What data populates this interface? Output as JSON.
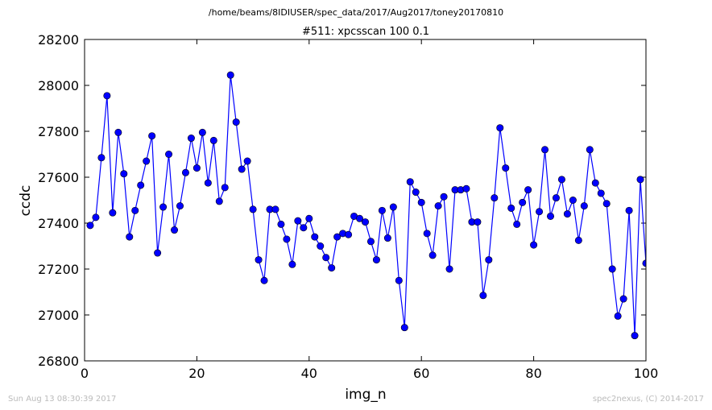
{
  "chart_data": {
    "type": "line",
    "suptitle": "/home/beams/8IDIUSER/spec_data/2017/Aug2017/toney20170810",
    "title": "#511: xpcsscan 100 0.1",
    "xlabel": "img_n",
    "ylabel": "ccdc",
    "xlim": [
      0,
      100
    ],
    "ylim": [
      26800,
      28200
    ],
    "xticks": [
      0,
      20,
      40,
      60,
      80,
      100
    ],
    "yticks": [
      26800,
      27000,
      27200,
      27400,
      27600,
      27800,
      28000,
      28200
    ],
    "grid": false,
    "series": [
      {
        "color": "#0000ff",
        "marker": "circle",
        "x": [
          1,
          2,
          3,
          4,
          5,
          6,
          7,
          8,
          9,
          10,
          11,
          12,
          13,
          14,
          15,
          16,
          17,
          18,
          19,
          20,
          21,
          22,
          23,
          24,
          25,
          26,
          27,
          28,
          29,
          30,
          31,
          32,
          33,
          34,
          35,
          36,
          37,
          38,
          39,
          40,
          41,
          42,
          43,
          44,
          45,
          46,
          47,
          48,
          49,
          50,
          51,
          52,
          53,
          54,
          55,
          56,
          57,
          58,
          59,
          60,
          61,
          62,
          63,
          64,
          65,
          66,
          67,
          68,
          69,
          70,
          71,
          72,
          73,
          74,
          75,
          76,
          77,
          78,
          79,
          80,
          81,
          82,
          83,
          84,
          85,
          86,
          87,
          88,
          89,
          90,
          91,
          92,
          93,
          94,
          95,
          96,
          97,
          98,
          99,
          100
        ],
        "y": [
          27390,
          27425,
          27685,
          27955,
          27445,
          27795,
          27615,
          27340,
          27455,
          27565,
          27670,
          27780,
          27270,
          27470,
          27700,
          27370,
          27475,
          27620,
          27770,
          27640,
          27795,
          27575,
          27760,
          27495,
          27555,
          28045,
          27840,
          27635,
          27670,
          27460,
          27240,
          27150,
          27460,
          27460,
          27395,
          27330,
          27220,
          27410,
          27380,
          27420,
          27340,
          27300,
          27250,
          27205,
          27340,
          27355,
          27350,
          27430,
          27420,
          27405,
          27320,
          27240,
          27455,
          27335,
          27470,
          27150,
          26945,
          27580,
          27535,
          27490,
          27355,
          27260,
          27475,
          27515,
          27200,
          27545,
          27545,
          27550,
          27405,
          27405,
          27085,
          27240,
          27510,
          27815,
          27640,
          27465,
          27395,
          27490,
          27545,
          27305,
          27450,
          27720,
          27430,
          27510,
          27590,
          27440,
          27500,
          27325,
          27475,
          27720,
          27575,
          27530,
          27485,
          27200,
          26995,
          27070,
          27455,
          26910,
          27590,
          27225
        ]
      }
    ]
  },
  "footer": {
    "timestamp": "Sun Aug 13 08:30:39 2017",
    "credit": "spec2nexus, (C) 2014-2017"
  }
}
